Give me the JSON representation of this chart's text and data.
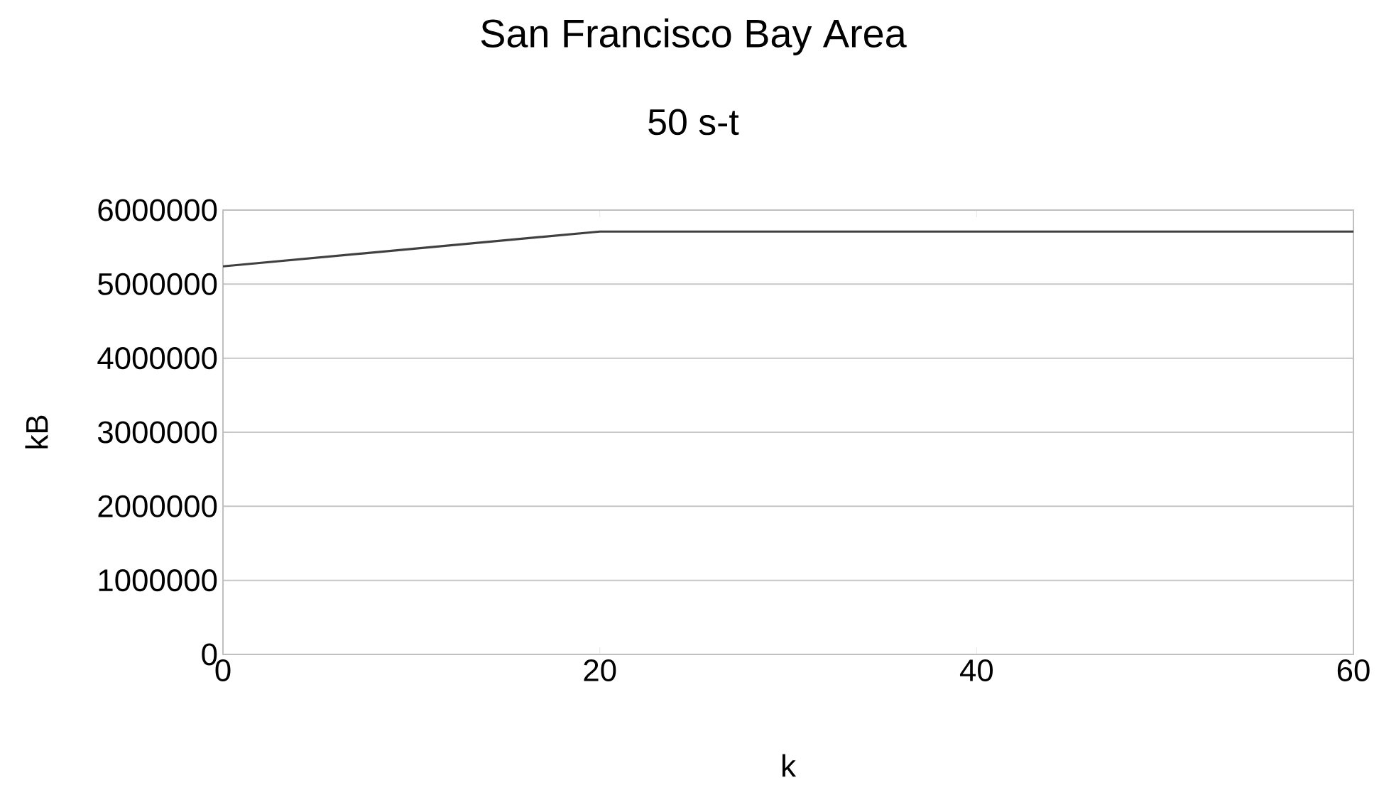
{
  "chart_data": {
    "type": "line",
    "title": "San Francisco Bay Area",
    "subtitle": "50 s-t",
    "xlabel": "k",
    "ylabel": "kB",
    "x": [
      0,
      20,
      40,
      60
    ],
    "series": [
      {
        "color": "#404040",
        "values": [
          5240000,
          5710000,
          5710000,
          5710000
        ]
      }
    ],
    "xlim": [
      0,
      60
    ],
    "xticks": [
      0,
      20,
      40,
      60
    ],
    "ylim": [
      0,
      6000000
    ],
    "yticks": [
      0,
      1000000,
      2000000,
      3000000,
      4000000,
      5000000,
      6000000
    ],
    "grid": "y",
    "marker": "none",
    "line_style": "solid"
  }
}
